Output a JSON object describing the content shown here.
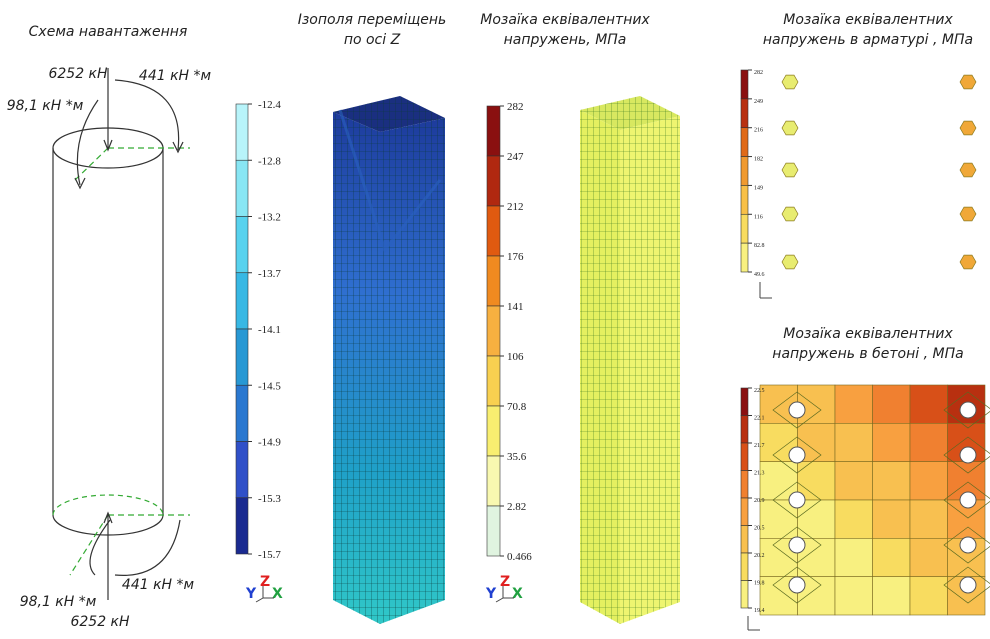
{
  "load_scheme": {
    "title": "Схема навантаження",
    "top_force": "6252 кН",
    "top_moment_right": "441 кН *м",
    "top_moment_left": "98,1 кН *м",
    "bottom_moment_left": "98,1 кН *м",
    "bottom_moment_right": "441 кН *м",
    "bottom_force": "6252 кН"
  },
  "displacement": {
    "title_lines": [
      "Ізополя переміщень",
      "по осі Z"
    ],
    "scale": [
      "-12.4",
      "-12.8",
      "-13.2",
      "-13.7",
      "-14.1",
      "-14.5",
      "-14.9",
      "-15.3",
      "-15.7"
    ],
    "axes": [
      "Y",
      "Z",
      "X"
    ]
  },
  "stress": {
    "title_lines": [
      "Мозаїка еквівалентних",
      "напружень, МПа"
    ],
    "scale": [
      "282",
      "247",
      "212",
      "176",
      "141",
      "106",
      "70.8",
      "35.6",
      "2.82",
      "0.466"
    ],
    "axes": [
      "Y",
      "Z",
      "X"
    ]
  },
  "rebar": {
    "title_lines": [
      "Мозаїка еквівалентних",
      "напружень в арматурі , МПа"
    ],
    "scale": [
      "282",
      "249",
      "216",
      "182",
      "149",
      "116",
      "82.8",
      "49.6"
    ]
  },
  "concrete": {
    "title_lines": [
      "Мозаїка еквівалентних",
      "напружень в бетоні , МПа"
    ],
    "scale": [
      "22.5",
      "22.1",
      "21.7",
      "21.3",
      "20.9",
      "20.5",
      "20.2",
      "19.8",
      "19.4"
    ]
  }
}
